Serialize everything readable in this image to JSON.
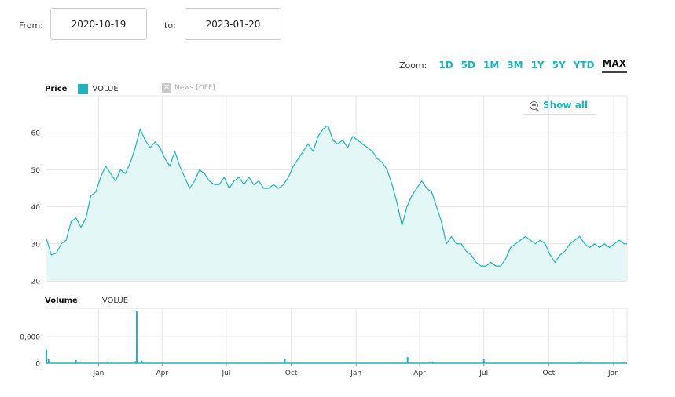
{
  "range": {
    "from_label": "From:",
    "from_value": "2020-10-19",
    "to_label": "to:",
    "to_value": "2023-01-20"
  },
  "zoom": {
    "label": "Zoom:",
    "options": [
      "1D",
      "5D",
      "1M",
      "3M",
      "1Y",
      "5Y",
      "YTD",
      "MAX"
    ],
    "active": "MAX"
  },
  "legend": {
    "price_title": "Price",
    "series_name": "VOLUE",
    "news_label": "News [OFF]",
    "volume_title": "Volume",
    "volume_series_name": "VOLUE"
  },
  "show_all_label": "Show all",
  "colors": {
    "accent": "#19b6bb",
    "area_fill": "#e4f7f7",
    "grid": "#e6e6e6"
  },
  "chart_data": [
    {
      "type": "area",
      "title": "Price",
      "x_axis": {
        "type": "date",
        "range": [
          "2020-10-19",
          "2023-01-20"
        ],
        "ticks": [
          {
            "date": "2021-01-01",
            "label": "Jan"
          },
          {
            "date": "2021-04-01",
            "label": "Apr"
          },
          {
            "date": "2021-07-01",
            "label": "Jul"
          },
          {
            "date": "2021-10-01",
            "label": "Oct"
          },
          {
            "date": "2022-01-01",
            "label": "Jan"
          },
          {
            "date": "2022-04-01",
            "label": "Apr"
          },
          {
            "date": "2022-07-01",
            "label": "Jul"
          },
          {
            "date": "2022-10-01",
            "label": "Oct"
          },
          {
            "date": "2023-01-01",
            "label": "Jan"
          }
        ]
      },
      "y_axis": {
        "range": [
          20,
          70
        ],
        "ticks": [
          20,
          30,
          40,
          50,
          60
        ]
      },
      "grid": true,
      "series": [
        {
          "name": "VOLUE",
          "x": [
            "2020-10-19",
            "2020-10-26",
            "2020-11-02",
            "2020-11-09",
            "2020-11-16",
            "2020-11-23",
            "2020-11-30",
            "2020-12-07",
            "2020-12-14",
            "2020-12-21",
            "2020-12-28",
            "2021-01-04",
            "2021-01-11",
            "2021-01-18",
            "2021-01-25",
            "2021-02-01",
            "2021-02-08",
            "2021-02-15",
            "2021-02-22",
            "2021-03-01",
            "2021-03-08",
            "2021-03-15",
            "2021-03-22",
            "2021-03-29",
            "2021-04-05",
            "2021-04-12",
            "2021-04-19",
            "2021-04-26",
            "2021-05-03",
            "2021-05-10",
            "2021-05-17",
            "2021-05-24",
            "2021-05-31",
            "2021-06-07",
            "2021-06-14",
            "2021-06-21",
            "2021-06-28",
            "2021-07-05",
            "2021-07-12",
            "2021-07-19",
            "2021-07-26",
            "2021-08-02",
            "2021-08-09",
            "2021-08-16",
            "2021-08-23",
            "2021-08-30",
            "2021-09-06",
            "2021-09-13",
            "2021-09-20",
            "2021-09-27",
            "2021-10-04",
            "2021-10-11",
            "2021-10-18",
            "2021-10-25",
            "2021-11-01",
            "2021-11-08",
            "2021-11-15",
            "2021-11-22",
            "2021-11-29",
            "2021-12-06",
            "2021-12-13",
            "2021-12-20",
            "2021-12-27",
            "2022-01-03",
            "2022-01-10",
            "2022-01-17",
            "2022-01-24",
            "2022-01-31",
            "2022-02-07",
            "2022-02-14",
            "2022-02-21",
            "2022-02-28",
            "2022-03-07",
            "2022-03-14",
            "2022-03-21",
            "2022-03-28",
            "2022-04-04",
            "2022-04-11",
            "2022-04-18",
            "2022-04-25",
            "2022-05-02",
            "2022-05-09",
            "2022-05-16",
            "2022-05-23",
            "2022-05-30",
            "2022-06-06",
            "2022-06-13",
            "2022-06-20",
            "2022-06-27",
            "2022-07-04",
            "2022-07-11",
            "2022-07-18",
            "2022-07-25",
            "2022-08-01",
            "2022-08-08",
            "2022-08-15",
            "2022-08-22",
            "2022-08-29",
            "2022-09-05",
            "2022-09-12",
            "2022-09-19",
            "2022-09-26",
            "2022-10-03",
            "2022-10-10",
            "2022-10-17",
            "2022-10-24",
            "2022-10-31",
            "2022-11-07",
            "2022-11-14",
            "2022-11-21",
            "2022-11-28",
            "2022-12-05",
            "2022-12-12",
            "2022-12-19",
            "2022-12-26",
            "2023-01-02",
            "2023-01-09",
            "2023-01-16",
            "2023-01-20"
          ],
          "values": [
            31.5,
            27,
            27.5,
            30,
            31,
            36,
            37,
            34.5,
            37,
            43,
            44,
            48,
            51,
            49,
            47,
            50,
            49,
            52,
            56,
            61,
            58,
            56,
            57.5,
            56,
            53,
            51,
            55,
            51,
            48,
            45,
            47,
            50,
            49,
            47,
            46,
            46,
            48,
            45,
            47,
            48,
            46,
            48,
            46,
            47,
            45,
            45,
            46,
            45,
            46,
            48,
            51,
            53,
            55,
            57,
            55,
            59,
            61,
            62,
            58,
            57,
            58,
            56,
            59,
            58,
            57,
            56,
            55,
            53,
            52,
            50,
            46,
            41,
            35,
            40,
            43,
            45,
            47,
            45,
            44,
            40,
            36,
            30,
            32,
            30,
            30,
            28,
            27,
            25,
            24,
            24,
            25,
            24,
            24,
            26,
            29,
            30,
            31,
            32,
            31,
            30,
            31,
            30,
            27,
            25,
            27,
            28,
            30,
            31,
            32,
            30,
            29,
            30,
            29,
            30,
            29,
            30,
            31,
            30,
            30
          ]
        }
      ]
    },
    {
      "type": "bar",
      "title": "Volume",
      "y_axis": {
        "ticks": [
          "0",
          "0,000"
        ]
      },
      "series": [
        {
          "name": "VOLUE",
          "x": [
            "2020-10-19",
            "2020-10-22",
            "2020-11-30",
            "2021-01-20",
            "2021-02-22",
            "2021-02-24",
            "2021-03-03",
            "2021-09-22",
            "2022-03-15",
            "2022-04-20",
            "2022-07-01",
            "2022-11-14"
          ],
          "values": [
            0.26,
            0.08,
            0.06,
            0.03,
            0.04,
            1.0,
            0.05,
            0.08,
            0.12,
            0.03,
            0.09,
            0.03
          ]
        }
      ]
    }
  ]
}
